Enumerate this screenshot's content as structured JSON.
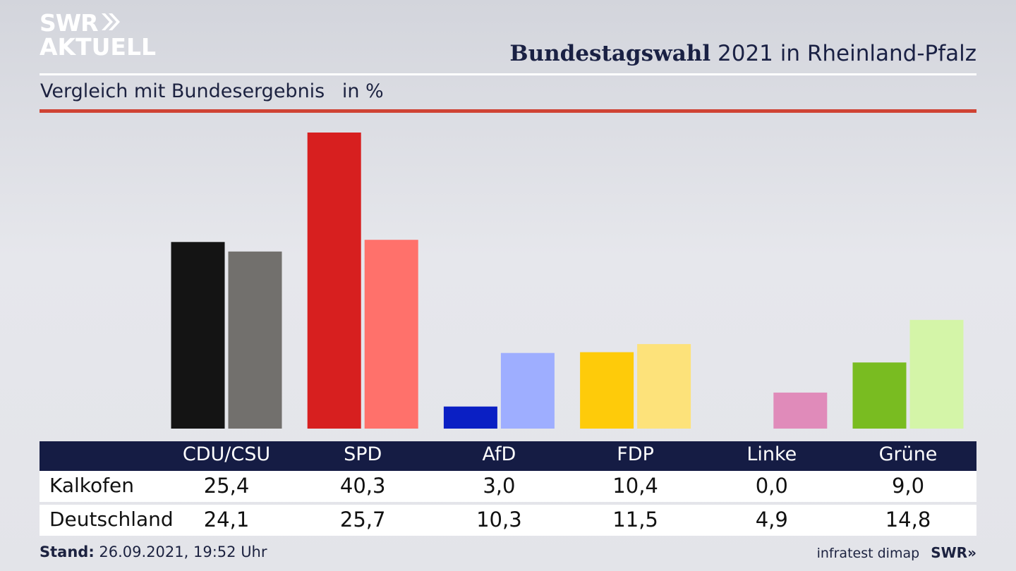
{
  "brand": {
    "logo_line1": "SWR",
    "logo_line2": "AKTUELL",
    "footer_logo": "SWR»"
  },
  "header": {
    "title_bold": "Bundestagswahl",
    "title_rest": "2021 in Rheinland-Pfalz"
  },
  "subtitle": {
    "text": "Vergleich mit Bundesergebnis",
    "unit": "in %"
  },
  "chart_data": {
    "type": "bar",
    "categories": [
      "CDU/CSU",
      "SPD",
      "AfD",
      "FDP",
      "Linke",
      "Grüne"
    ],
    "series": [
      {
        "name": "Kalkofen",
        "values": [
          25.4,
          40.3,
          3.0,
          10.4,
          0.0,
          9.0
        ],
        "colors": [
          "#141414",
          "#d71f1f",
          "#0a1fc4",
          "#fecb0a",
          "#e08bba",
          "#79bc21"
        ]
      },
      {
        "name": "Deutschland",
        "values": [
          24.1,
          25.7,
          10.3,
          11.5,
          4.9,
          14.8
        ],
        "colors": [
          "#72706d",
          "#ff716b",
          "#9eaeff",
          "#fde27a",
          "#e08bba",
          "#d4f5a8"
        ]
      }
    ],
    "ylim": [
      0,
      40.3
    ],
    "grid": false,
    "legend": "table-below"
  },
  "table": {
    "rows": [
      {
        "label": "Kalkofen",
        "values": [
          "25,4",
          "40,3",
          "3,0",
          "10,4",
          "0,0",
          "9,0"
        ]
      },
      {
        "label": "Deutschland",
        "values": [
          "24,1",
          "25,7",
          "10,3",
          "11,5",
          "4,9",
          "14,8"
        ]
      }
    ]
  },
  "footer": {
    "stand_label": "Stand:",
    "stand_value": "26.09.2021, 19:52 Uhr",
    "source": "infratest dimap"
  }
}
